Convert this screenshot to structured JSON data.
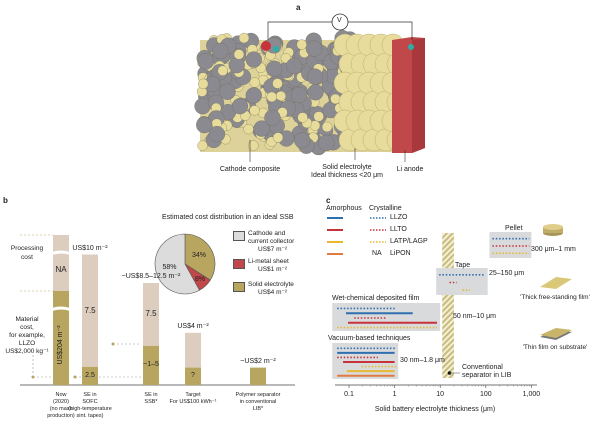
{
  "panel_a": {
    "label": "a",
    "voltmeter": "V",
    "ion_li": "Li⁺",
    "ion_e": "e⁻",
    "labels": {
      "cathode": "Cathode composite",
      "electrolyte": "Solid electrolyte",
      "electrolyte_thickness": "Ideal thickness <20 μm",
      "anode": "Li anode"
    },
    "colors": {
      "electrolyte": "#e8dc9c",
      "cathode": "#8a8a90",
      "anode": "#c0474a"
    }
  },
  "panel_b": {
    "label": "b",
    "side_labels": {
      "processing": [
        "Processing",
        "cost"
      ],
      "material": [
        "Material",
        "cost,",
        "for example,",
        "LLZO",
        "US$2,000 kg⁻¹"
      ]
    },
    "chart_data": {
      "type": "bar",
      "categories": [
        [
          "Now",
          "(2020)",
          "(no mass",
          "production)"
        ],
        [
          "SE in",
          "SOFC",
          "(high-temperature",
          "sint. tapes)"
        ],
        [
          "SE in",
          "SSB*"
        ],
        [
          "Target",
          "For US$100 kWh⁻¹"
        ],
        [
          "Polymer separator",
          "in conventional",
          "LIB*"
        ]
      ],
      "bars": [
        {
          "total_label": "",
          "material": 204,
          "material_label": "US$204 m⁻²",
          "processing_label": "NA"
        },
        {
          "total_label": "US$10 m⁻²",
          "total": 10,
          "material": 2.5,
          "material_label": "2.5",
          "processing": 7.5,
          "processing_label": "7.5"
        },
        {
          "total_label": "~US$8.5–12.5 m⁻²",
          "total": 10.5,
          "material": 3,
          "material_label": "~1–5",
          "processing": 7.5,
          "processing_label": "7.5"
        },
        {
          "total_label": "US$4 m⁻²",
          "total": 4,
          "material": 2,
          "material_label": "?",
          "processing": 2
        },
        {
          "total_label": "~US$2 m⁻²",
          "total": 2,
          "material": 2
        }
      ],
      "colors": {
        "material": "#b8a660",
        "processing": "#dccdbe"
      }
    },
    "pie": {
      "title": "Estimated cost distribution in an ideal SSB",
      "slices": [
        {
          "name": "Cathode and current collector",
          "name_lines": [
            "Cathode and",
            "current collector"
          ],
          "value_label": "US$7 m⁻²",
          "percent": 58,
          "label": "58%",
          "color": "#dcdcdc"
        },
        {
          "name": "Li-metal sheet",
          "name_lines": [
            "Li-metal sheet"
          ],
          "value_label": "US$1 m⁻²",
          "percent": 8,
          "label": "8%",
          "color": "#c0474a"
        },
        {
          "name": "Solid electrolyte",
          "name_lines": [
            "Solid electrolyte"
          ],
          "value_label": "US$4 m⁻²",
          "percent": 34,
          "label": "34%",
          "color": "#b8a660"
        }
      ]
    }
  },
  "panel_c": {
    "label": "c",
    "legend": {
      "headers": [
        "Amorphous",
        "Crystalline"
      ],
      "rows": [
        {
          "name": "LLZO",
          "color": "#2f6fb0",
          "amorphous": "line",
          "crystalline": "dots"
        },
        {
          "name": "LLTO",
          "color": "#c8323a",
          "amorphous": "line",
          "crystalline": "dots"
        },
        {
          "name": "LATP/LAGP",
          "color": "#e8b830",
          "amorphous": "line",
          "crystalline": "dots"
        },
        {
          "name": "LiPON",
          "color": "#e07a40",
          "amorphous": "line",
          "crystalline": "NA"
        }
      ]
    },
    "chart_data": {
      "type": "range",
      "xlabel": "Solid battery electrolyte thickness (μm)",
      "xscale": "log",
      "xlim": [
        0.05,
        1200
      ],
      "xticks": [
        "0.1",
        "1",
        "10",
        "100",
        "1,000"
      ],
      "xtick_values": [
        0.1,
        1,
        10,
        100,
        1000
      ],
      "groups": [
        {
          "name": "Pellet",
          "range_label": "300 μm–1 mm",
          "range": [
            300,
            1000
          ],
          "shape_label": "",
          "lines": [
            {
              "m": "LLZO",
              "s": "dots",
              "x": [
                140,
                900
              ]
            },
            {
              "m": "LLTO",
              "s": "dots",
              "x": [
                140,
                900
              ]
            },
            {
              "m": "LATP/LAGP",
              "s": "dots",
              "x": [
                140,
                900
              ]
            }
          ]
        },
        {
          "name": "Tape",
          "range_label": "25–150 μm",
          "range": [
            25,
            150
          ],
          "lines": [
            {
              "m": "LLZO",
              "s": "dots",
              "x": [
                9.5,
                95
              ]
            },
            {
              "m": "LLTO",
              "s": "dots",
              "x": [
                16,
                23
              ]
            },
            {
              "m": "LATP/LAGP",
              "s": "dots",
              "x": [
                31,
                45
              ]
            }
          ]
        },
        {
          "name": "Wet-chemical deposited film",
          "range_label": "50 nm–10 μm",
          "range": [
            0.05,
            10
          ],
          "lines": [
            {
              "m": "LLZO",
              "s": "dots",
              "x": [
                0.055,
                1.1
              ]
            },
            {
              "m": "LLZO",
              "s": "line",
              "x": [
                0.086,
                2.5
              ]
            },
            {
              "m": "LLTO",
              "s": "dots",
              "x": [
                0.13,
                0.68
              ]
            },
            {
              "m": "LLTO",
              "s": "line",
              "x": [
                0.095,
                8.5
              ]
            },
            {
              "m": "LATP/LAGP",
              "s": "dots",
              "x": [
                0.055,
                8.5
              ]
            }
          ]
        },
        {
          "name": "Vacuum-based techniques",
          "range_label": "30 nm–1.8 μm",
          "range": [
            0.03,
            1.8
          ],
          "lines": [
            {
              "m": "LLZO",
              "s": "dots",
              "x": [
                0.055,
                1.1
              ]
            },
            {
              "m": "LLZO",
              "s": "line",
              "x": [
                0.055,
                1.0
              ]
            },
            {
              "m": "LLTO",
              "s": "dots",
              "x": [
                0.055,
                0.43
              ]
            },
            {
              "m": "LLTO",
              "s": "line",
              "x": [
                0.074,
                1.0
              ]
            },
            {
              "m": "LATP/LAGP",
              "s": "dots",
              "x": [
                0.19,
                1.1
              ]
            },
            {
              "m": "LATP/LAGP",
              "s": "line",
              "x": [
                0.09,
                1.0
              ]
            },
            {
              "m": "LiPON",
              "s": "line",
              "x": [
                0.055,
                1.0
              ]
            }
          ]
        }
      ],
      "separator": {
        "label": [
          "Conventional",
          "separator in LIB"
        ],
        "range": [
          10,
          20
        ],
        "marker": 16
      }
    },
    "forms": [
      "'Thick free-standing film'",
      "'Thin film on substrate'"
    ]
  }
}
